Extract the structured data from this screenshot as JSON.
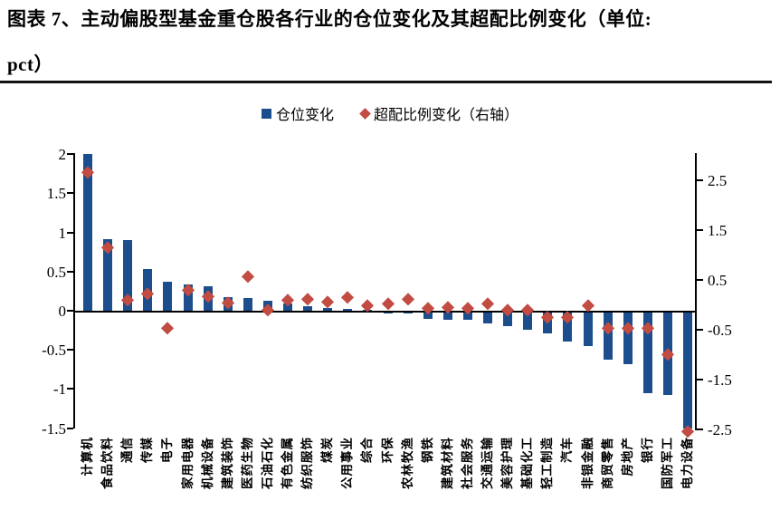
{
  "title": {
    "line1": "图表 7、主动偏股型基金重仓股各行业的仓位变化及其超配比例变化（单位:",
    "line2": "pct）"
  },
  "legend": [
    {
      "label": "仓位变化",
      "marker": "square",
      "color": "#1C4E8E"
    },
    {
      "label": "超配比例变化（右轴）",
      "marker": "diamond",
      "color": "#C24B42"
    }
  ],
  "colors": {
    "bar_blue": "#1C4E8E",
    "diamond_red": "#C24B42",
    "axis_black": "#000000"
  },
  "chart_data": {
    "type": "bar",
    "subtype": "dual-axis bar + scatter(diamond)",
    "title": "主动偏股型基金重仓股各行业的仓位变化及其超配比例变化（单位:pct）",
    "grid": false,
    "legend_position": "top-center",
    "categories": [
      "计算机",
      "食品饮料",
      "通信",
      "传媒",
      "电子",
      "家用电器",
      "机械设备",
      "建筑装饰",
      "医药生物",
      "石油石化",
      "有色金属",
      "纺织服饰",
      "煤炭",
      "公用事业",
      "综合",
      "环保",
      "农林牧渔",
      "钢铁",
      "建筑材料",
      "社会服务",
      "交通运输",
      "美容护理",
      "基础化工",
      "轻工制造",
      "汽车",
      "非银金融",
      "商贸零售",
      "房地产",
      "银行",
      "国防军工",
      "电力设备"
    ],
    "series": [
      {
        "name": "仓位变化",
        "type": "bar",
        "axis": "left",
        "color": "#1C4E8E",
        "values": [
          2.0,
          0.92,
          0.9,
          0.53,
          0.37,
          0.34,
          0.31,
          0.17,
          0.16,
          0.13,
          0.09,
          0.06,
          0.03,
          0.02,
          0.01,
          -0.01,
          -0.03,
          -0.1,
          -0.11,
          -0.12,
          -0.16,
          -0.2,
          -0.24,
          -0.29,
          -0.39,
          -0.45,
          -0.62,
          -0.68,
          -1.05,
          -1.08,
          -1.5
        ]
      },
      {
        "name": "超配比例变化（右轴）",
        "type": "scatter",
        "marker": "diamond",
        "axis": "right",
        "color": "#C24B42",
        "values": [
          2.65,
          1.15,
          0.1,
          0.22,
          -0.47,
          0.3,
          0.17,
          0.04,
          0.56,
          -0.11,
          0.09,
          0.11,
          0.05,
          0.15,
          -0.01,
          0.02,
          0.11,
          -0.08,
          -0.05,
          -0.08,
          0.02,
          -0.11,
          -0.11,
          -0.25,
          -0.25,
          -0.02,
          -0.47,
          -0.48,
          -0.47,
          -1.0,
          -2.55
        ]
      }
    ],
    "left_axis": {
      "ticks": [
        2,
        1.5,
        1,
        0.5,
        0,
        -0.5,
        -1,
        -1.5
      ],
      "range": [
        -1.5,
        2
      ]
    },
    "right_axis": {
      "ticks": [
        2.5,
        1.5,
        0.5,
        -0.5,
        -1.5,
        -2.5
      ],
      "range": [
        -2.55,
        3.15
      ]
    }
  }
}
